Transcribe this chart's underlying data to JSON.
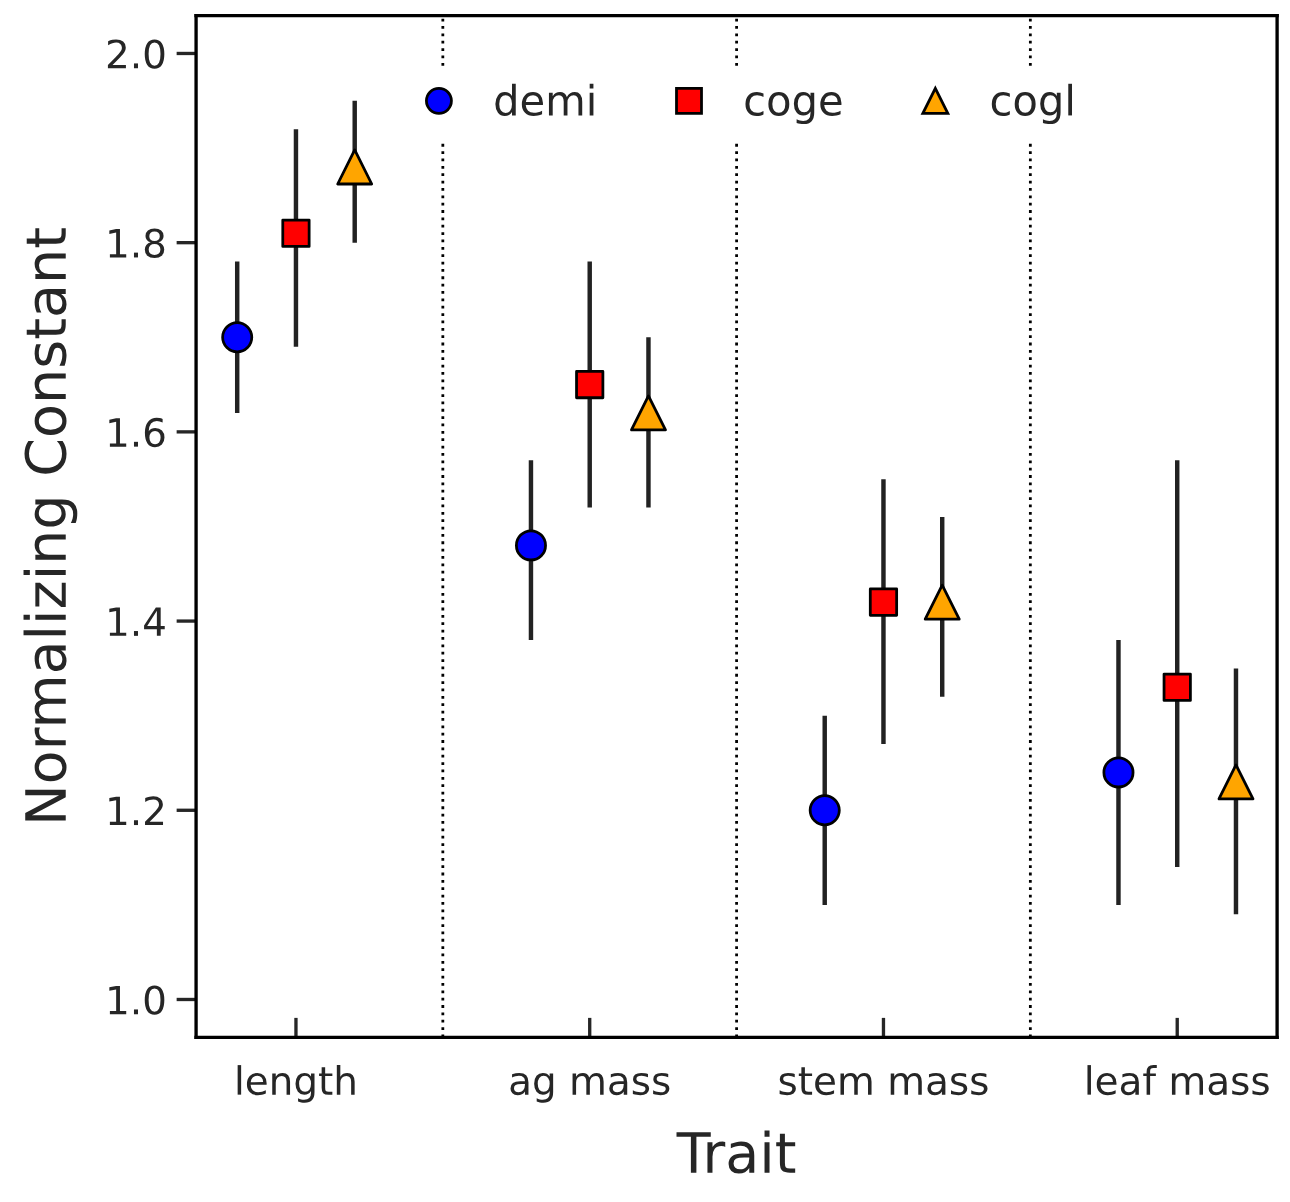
{
  "chart_data": {
    "type": "scatter",
    "xlabel": "Trait",
    "ylabel": "Normalizing Constant",
    "categories": [
      null,
      "length",
      null,
      null,
      null,
      null,
      "ag mass",
      null,
      null,
      null,
      null,
      "stem mass",
      null,
      null,
      null,
      null,
      "leaf mass",
      null
    ],
    "ylim": [
      0.96,
      2.04
    ],
    "yticks": [
      {
        "value": 1.0,
        "label": "1.0"
      },
      {
        "value": 1.2,
        "label": "1.2"
      },
      {
        "value": 1.4,
        "label": "1.4"
      },
      {
        "value": 1.6,
        "label": "1.6"
      },
      {
        "value": 1.8,
        "label": "1.8"
      },
      {
        "value": 2.0,
        "label": "2.0"
      }
    ],
    "series": [
      {
        "name": "demi",
        "color": "#0000ff",
        "marker": "circle",
        "values": [
          1.7,
          null,
          null,
          null,
          null,
          1.48,
          null,
          null,
          null,
          null,
          1.2,
          null,
          null,
          null,
          null,
          1.24,
          null,
          null
        ],
        "errors": [
          [
            1.62,
            1.78
          ],
          null,
          null,
          null,
          null,
          [
            1.38,
            1.57
          ],
          null,
          null,
          null,
          null,
          [
            1.1,
            1.3
          ],
          null,
          null,
          null,
          null,
          [
            1.1,
            1.38
          ],
          null,
          null
        ]
      },
      {
        "name": "coge",
        "color": "#ff0000",
        "marker": "square",
        "values": [
          null,
          1.81,
          null,
          null,
          null,
          null,
          1.65,
          null,
          null,
          null,
          null,
          1.42,
          null,
          null,
          null,
          null,
          1.33,
          null
        ],
        "errors": [
          null,
          [
            1.69,
            1.92
          ],
          null,
          null,
          null,
          null,
          [
            1.52,
            1.78
          ],
          null,
          null,
          null,
          null,
          [
            1.27,
            1.55
          ],
          null,
          null,
          null,
          null,
          [
            1.14,
            1.57
          ],
          null
        ]
      },
      {
        "name": "cogl",
        "color": "#ffa500",
        "marker": "triangle",
        "values": [
          null,
          null,
          1.88,
          null,
          null,
          null,
          null,
          1.62,
          null,
          null,
          null,
          null,
          1.42,
          null,
          null,
          null,
          null,
          1.23
        ],
        "errors": [
          null,
          null,
          [
            1.8,
            1.95
          ],
          null,
          null,
          null,
          null,
          [
            1.52,
            1.7
          ],
          null,
          null,
          null,
          null,
          [
            1.32,
            1.51
          ],
          null,
          null,
          null,
          null,
          [
            1.09,
            1.35
          ]
        ]
      }
    ],
    "legend": "top"
  }
}
